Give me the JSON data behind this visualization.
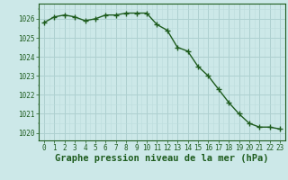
{
  "x": [
    0,
    1,
    2,
    3,
    4,
    5,
    6,
    7,
    8,
    9,
    10,
    11,
    12,
    13,
    14,
    15,
    16,
    17,
    18,
    19,
    20,
    21,
    22,
    23
  ],
  "y": [
    1025.8,
    1026.1,
    1026.2,
    1026.1,
    1025.9,
    1026.0,
    1026.2,
    1026.2,
    1026.3,
    1026.3,
    1026.3,
    1025.7,
    1025.4,
    1024.5,
    1024.3,
    1023.5,
    1023.0,
    1022.3,
    1021.6,
    1021.0,
    1020.5,
    1020.3,
    1020.3,
    1020.2
  ],
  "line_color": "#1e5c1e",
  "marker": "+",
  "marker_size": 5,
  "line_width": 1.0,
  "bg_color": "#cce8e8",
  "grid_color_major": "#aed0d0",
  "grid_color_minor": "#bcdcdc",
  "ylabel_ticks": [
    1020,
    1021,
    1022,
    1023,
    1024,
    1025,
    1026
  ],
  "ylim": [
    1019.6,
    1026.8
  ],
  "xlim": [
    -0.5,
    23.5
  ],
  "xlabel": "Graphe pression niveau de la mer (hPa)",
  "tick_color": "#1e5c1e",
  "tick_fontsize": 5.5,
  "xlabel_fontsize": 7.5
}
